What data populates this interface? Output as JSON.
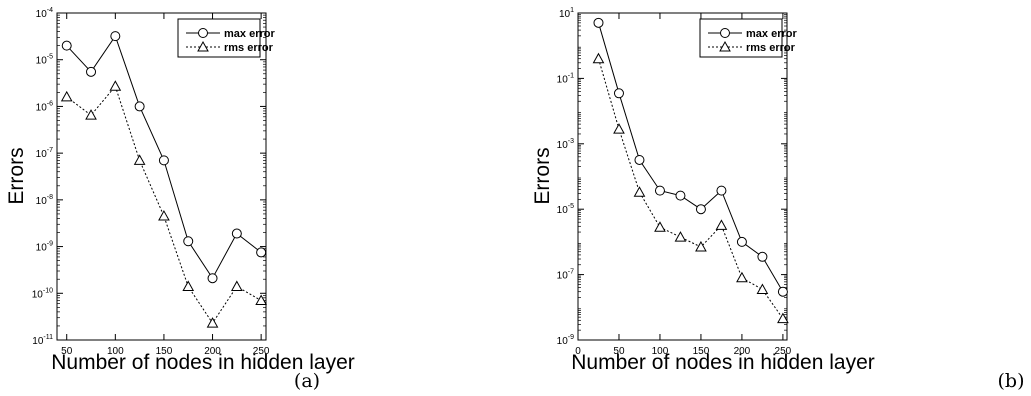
{
  "chart_data": [
    {
      "type": "line",
      "panel_label": "(a)",
      "xlabel": "Number of nodes in hidden layer",
      "ylabel": "Errors",
      "xlim": [
        40,
        255
      ],
      "ylim": [
        1e-11,
        0.0001
      ],
      "yscale": "log",
      "xticks": [
        50,
        100,
        150,
        200,
        250
      ],
      "xtick_labels": [
        "50",
        "100",
        "150",
        "200",
        "250"
      ],
      "yticks": [
        -11,
        -10,
        -9,
        -8,
        -7,
        -6,
        -5,
        -4
      ],
      "ytick_labels": [
        {
          "base": "10",
          "exp": "-11"
        },
        {
          "base": "10",
          "exp": "-10"
        },
        {
          "base": "10",
          "exp": "-9"
        },
        {
          "base": "10",
          "exp": "-8"
        },
        {
          "base": "10",
          "exp": "-7"
        },
        {
          "base": "10",
          "exp": "-6"
        },
        {
          "base": "10",
          "exp": "-5"
        },
        {
          "base": "10",
          "exp": "-4"
        }
      ],
      "legend_position": "top-right",
      "x": [
        50,
        75,
        100,
        125,
        150,
        175,
        200,
        225,
        250
      ],
      "series": [
        {
          "name": "max error",
          "marker": "circle",
          "line": "solid",
          "values": [
            2e-05,
            5.5e-06,
            3.2e-05,
            1e-06,
            7e-08,
            1.3e-09,
            2.1e-10,
            1.9e-09,
            7.5e-10
          ]
        },
        {
          "name": "rms error",
          "marker": "triangle",
          "line": "dotted",
          "values": [
            1.6e-06,
            6.5e-07,
            2.7e-06,
            7e-08,
            4.5e-09,
            1.4e-10,
            2.3e-11,
            1.4e-10,
            7e-11
          ]
        }
      ]
    },
    {
      "type": "line",
      "panel_label": "(b)",
      "xlabel": "Number of nodes in hidden layer",
      "ylabel": "Errors",
      "xlim": [
        0,
        255
      ],
      "ylim": [
        1e-09,
        10
      ],
      "yscale": "log",
      "xticks": [
        0,
        50,
        100,
        150,
        200,
        250
      ],
      "xtick_labels": [
        "0",
        "50",
        "100",
        "150",
        "200",
        "250"
      ],
      "yticks": [
        -9,
        -7,
        -5,
        -3,
        -1,
        1
      ],
      "ytick_labels": [
        {
          "base": "10",
          "exp": "-9"
        },
        {
          "base": "10",
          "exp": "-7"
        },
        {
          "base": "10",
          "exp": "-5"
        },
        {
          "base": "10",
          "exp": "-3"
        },
        {
          "base": "10",
          "exp": "-1"
        },
        {
          "base": "10",
          "exp": "1"
        }
      ],
      "legend_position": "top-right",
      "x": [
        25,
        50,
        75,
        100,
        125,
        150,
        175,
        200,
        225,
        250
      ],
      "series": [
        {
          "name": "max error",
          "marker": "circle",
          "line": "solid",
          "values": [
            5,
            0.035,
            0.00032,
            3.7e-05,
            2.6e-05,
            1e-05,
            3.7e-05,
            1e-06,
            3.5e-07,
            3e-08
          ]
        },
        {
          "name": "rms error",
          "marker": "triangle",
          "line": "dotted",
          "values": [
            0.4,
            0.0028,
            3.3e-05,
            2.8e-06,
            1.4e-06,
            7e-07,
            3.2e-06,
            8e-08,
            3.5e-08,
            4.5e-09
          ]
        }
      ]
    }
  ]
}
